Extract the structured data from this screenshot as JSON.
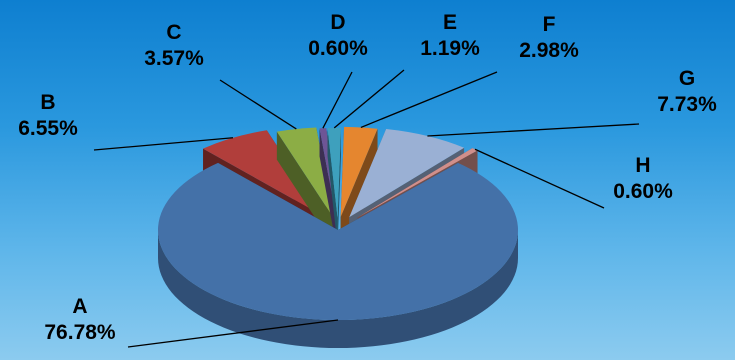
{
  "chart_data": {
    "type": "pie",
    "style": "3d-exploded",
    "title": "",
    "categories": [
      "A",
      "B",
      "C",
      "D",
      "E",
      "F",
      "G",
      "H"
    ],
    "values": [
      76.78,
      6.55,
      3.57,
      0.6,
      1.19,
      2.98,
      7.73,
      0.6
    ],
    "labels": [
      {
        "name": "A",
        "value": "76.78%"
      },
      {
        "name": "B",
        "value": "6.55%"
      },
      {
        "name": "C",
        "value": "3.57%"
      },
      {
        "name": "D",
        "value": "0.60%"
      },
      {
        "name": "E",
        "value": "1.19%"
      },
      {
        "name": "F",
        "value": "2.98%"
      },
      {
        "name": "G",
        "value": "7.73%"
      },
      {
        "name": "H",
        "value": "0.60%"
      }
    ],
    "colors": [
      "#4471a8",
      "#b13e3b",
      "#8cad45",
      "#6e5596",
      "#3ea0bd",
      "#e5862f",
      "#9ab0d4",
      "#d18f8b"
    ],
    "legend": "none"
  }
}
